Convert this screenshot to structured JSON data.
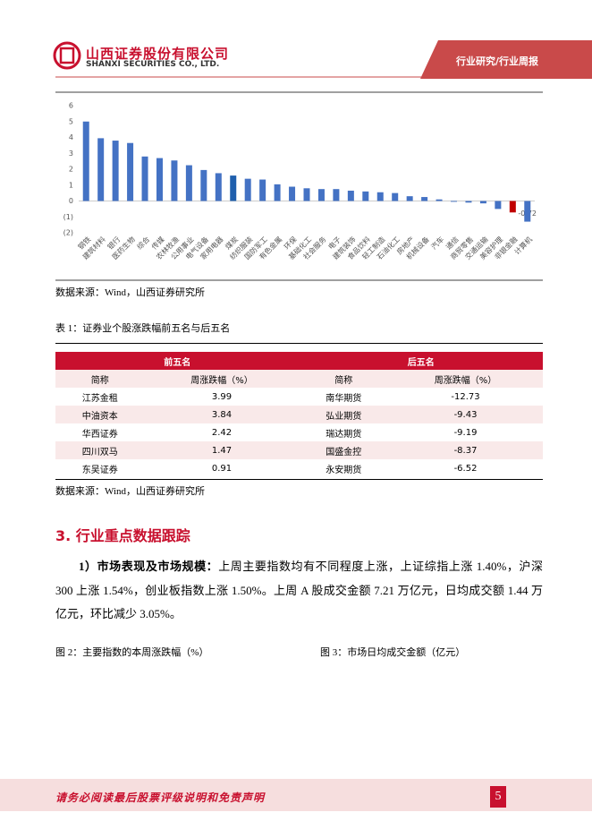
{
  "header": {
    "company_cn": "山西证券股份有限公司",
    "company_en": "SHANXI SECURITIES CO., LTD.",
    "tag": "行业研究/行业周报"
  },
  "chart_data": {
    "type": "bar",
    "categories": [
      "钢铁",
      "建筑材料",
      "银行",
      "医药生物",
      "综合",
      "传媒",
      "农林牧渔",
      "公用事业",
      "电气设备",
      "家用电器",
      "煤炭",
      "纺织服装",
      "国防军工",
      "有色金属",
      "环保",
      "基础化工",
      "社会服务",
      "电子",
      "建筑装饰",
      "食品饮料",
      "轻工制造",
      "石油化工",
      "房地产",
      "机械设备",
      "汽车",
      "通信",
      "商贸零售",
      "交通运输",
      "美容护理",
      "非银金融",
      "计算机"
    ],
    "values": [
      5.0,
      3.95,
      3.8,
      3.65,
      2.8,
      2.7,
      2.55,
      2.25,
      1.95,
      1.75,
      1.6,
      1.4,
      1.35,
      1.05,
      0.9,
      0.8,
      0.75,
      0.75,
      0.65,
      0.6,
      0.55,
      0.5,
      0.3,
      0.25,
      0.1,
      -0.05,
      -0.1,
      -0.15,
      -0.5,
      -0.72,
      -1.3
    ],
    "value_labels": [
      null,
      null,
      null,
      null,
      null,
      null,
      null,
      null,
      null,
      null,
      null,
      null,
      null,
      null,
      null,
      null,
      null,
      null,
      null,
      null,
      null,
      null,
      null,
      null,
      null,
      null,
      null,
      null,
      null,
      "-0.72",
      null
    ],
    "colors": [
      "#4472c4",
      "#4472c4",
      "#4472c4",
      "#4472c4",
      "#4472c4",
      "#4472c4",
      "#4472c4",
      "#4472c4",
      "#4472c4",
      "#4472c4",
      "#1f5fad",
      "#4472c4",
      "#4472c4",
      "#4472c4",
      "#4472c4",
      "#4472c4",
      "#4472c4",
      "#4472c4",
      "#4472c4",
      "#4472c4",
      "#4472c4",
      "#4472c4",
      "#4472c4",
      "#4472c4",
      "#4472c4",
      "#4472c4",
      "#4472c4",
      "#4472c4",
      "#4472c4",
      "#c00000",
      "#4472c4"
    ],
    "ylim": [
      -2,
      6
    ],
    "yticks": [
      6,
      5,
      4,
      3,
      2,
      1,
      0,
      {
        "value": -1,
        "label": "(1)"
      },
      {
        "value": -2,
        "label": "(2)"
      }
    ]
  },
  "source1": "数据来源：Wind，山西证券研究所",
  "table": {
    "title": "表 1：证券业个股涨跌幅前五名与后五名",
    "groups": [
      "前五名",
      "后五名"
    ],
    "columns": [
      "简称",
      "周涨跌幅（%）",
      "简称",
      "周涨跌幅（%）"
    ],
    "rows": [
      [
        "江苏金租",
        "3.99",
        "南华期货",
        "-12.73"
      ],
      [
        "中油资本",
        "3.84",
        "弘业期货",
        "-9.43"
      ],
      [
        "华西证券",
        "2.42",
        "瑞达期货",
        "-9.19"
      ],
      [
        "四川双马",
        "1.47",
        "国盛金控",
        "-8.37"
      ],
      [
        "东吴证券",
        "0.91",
        "永安期货",
        "-6.52"
      ]
    ]
  },
  "source2": "数据来源：Wind，山西证券研究所",
  "section": {
    "title": "3. 行业重点数据跟踪",
    "lead": "1）市场表现及市场规模：",
    "text": "上周主要指数均有不同程度上涨，上证综指上涨 1.40%，沪深 300 上涨 1.54%，创业板指数上涨 1.50%。上周 A 股成交金额 7.21 万亿元，日均成交额 1.44 万亿元，环比减少 3.05%。"
  },
  "figures": [
    "图 2：主要指数的本周涨跌幅（%）",
    "图 3：市场日均成交金额（亿元）"
  ],
  "footer": {
    "disclaimer": "请务必阅读最后股票评级说明和免责声明",
    "page": "5"
  }
}
